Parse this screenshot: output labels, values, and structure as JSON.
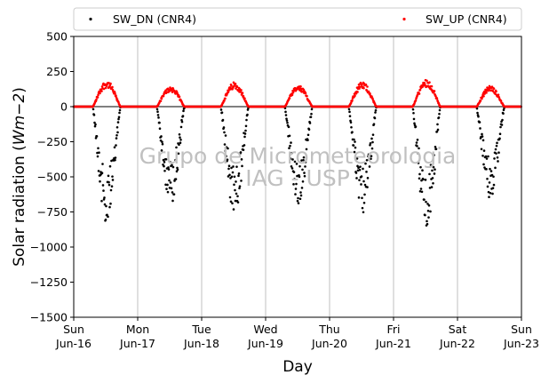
{
  "chart_data": {
    "type": "scatter",
    "ylabel": "Solar radiation ($Wm{-}2$)",
    "ylabel_parts": {
      "prefix": "Solar radiation (",
      "math": "Wm",
      "sup": "−2",
      "suffix": ")"
    },
    "xlabel": "Day",
    "ylim": [
      -1500,
      500
    ],
    "yticks": [
      500,
      250,
      0,
      -250,
      -500,
      -750,
      -1000,
      -1250,
      -1500
    ],
    "ytick_labels": [
      "500",
      "250",
      "0",
      "−250",
      "−500",
      "−750",
      "−1000",
      "−1250",
      "−1500"
    ],
    "xlim": [
      "2024-06-16",
      "2024-06-23"
    ],
    "xticks": [
      {
        "line1": "Sun",
        "line2": "Jun-16"
      },
      {
        "line1": "Mon",
        "line2": "Jun-17"
      },
      {
        "line1": "Tue",
        "line2": "Jun-18"
      },
      {
        "line1": "Wed",
        "line2": "Jun-19"
      },
      {
        "line1": "Thu",
        "line2": "Jun-20"
      },
      {
        "line1": "Fri",
        "line2": "Jun-21"
      },
      {
        "line1": "Sat",
        "line2": "Jun-22"
      },
      {
        "line1": "Sun",
        "line2": "Jun-23"
      }
    ],
    "grid": "vertical",
    "legend_position": "top",
    "series": [
      {
        "name": "SW_DN (CNR4)",
        "color": "#000000",
        "marker": "dot"
      },
      {
        "name": "SW_UP (CNR4)",
        "color": "#ff0000",
        "marker": "dot"
      }
    ],
    "daily_peaks": [
      {
        "day": "Jun-16",
        "sw_dn_min": -840,
        "sw_up_max": 185
      },
      {
        "day": "Jun-17",
        "sw_dn_min": -690,
        "sw_up_max": 145
      },
      {
        "day": "Jun-18",
        "sw_dn_min": -770,
        "sw_up_max": 175
      },
      {
        "day": "Jun-19",
        "sw_dn_min": -700,
        "sw_up_max": 150
      },
      {
        "day": "Jun-20",
        "sw_dn_min": -770,
        "sw_up_max": 175
      },
      {
        "day": "Jun-21",
        "sw_dn_min": -870,
        "sw_up_max": 195
      },
      {
        "day": "Jun-22",
        "sw_dn_min": -660,
        "sw_up_max": 150
      }
    ],
    "watermark": [
      "Grupo de Micrometeorologia",
      "IAG - USP"
    ]
  }
}
